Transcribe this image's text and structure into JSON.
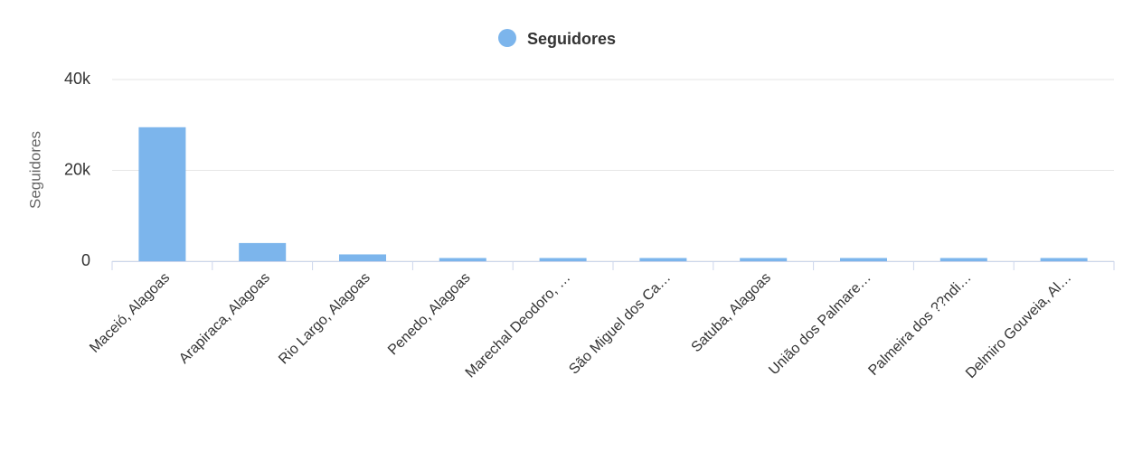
{
  "chart_data": {
    "type": "bar",
    "y_axis_label": "Seguidores",
    "categories": [
      "Maceió, Alagoas",
      "Arapiraca, Alagoas",
      "Rio Largo, Alagoas",
      "Penedo, Alagoas",
      "Marechal Deodoro, …",
      "São Miguel dos Ca…",
      "Satuba, Alagoas",
      "União dos Palmare…",
      "Palmeira dos ??ndi…",
      "Delmiro Gouveia, Al…"
    ],
    "series": [
      {
        "name": "Seguidores",
        "color": "#7cb5ec",
        "values": [
          29500,
          4000,
          1500,
          700,
          700,
          700,
          700,
          700,
          700,
          700
        ]
      }
    ],
    "ylim": [
      0,
      40000
    ],
    "yticks": [
      0,
      {
        "value": 20000,
        "label": "20k"
      },
      {
        "value": 40000,
        "label": "40k"
      }
    ],
    "grid": true,
    "legend": "top"
  }
}
